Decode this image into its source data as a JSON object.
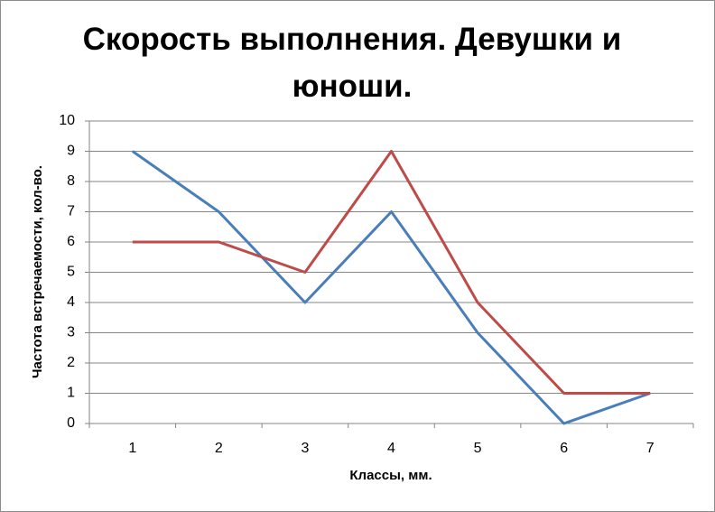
{
  "chart_data": {
    "type": "line",
    "title": "Скорость выполнения. Девушки и юноши.",
    "x_label": "Классы, мм.",
    "y_label": "Частота встречаемости, кол-во.",
    "categories": [
      "1",
      "2",
      "3",
      "4",
      "5",
      "6",
      "7"
    ],
    "series": [
      {
        "color": "#4a7ebb",
        "values": [
          9,
          7,
          4,
          7,
          3,
          0,
          1
        ]
      },
      {
        "color": "#be4b48",
        "values": [
          6,
          6,
          5,
          9,
          4,
          1,
          1
        ]
      }
    ],
    "ylim": [
      0,
      10
    ],
    "yticks": [
      0,
      1,
      2,
      3,
      4,
      5,
      6,
      7,
      8,
      9,
      10
    ],
    "grid": true
  }
}
